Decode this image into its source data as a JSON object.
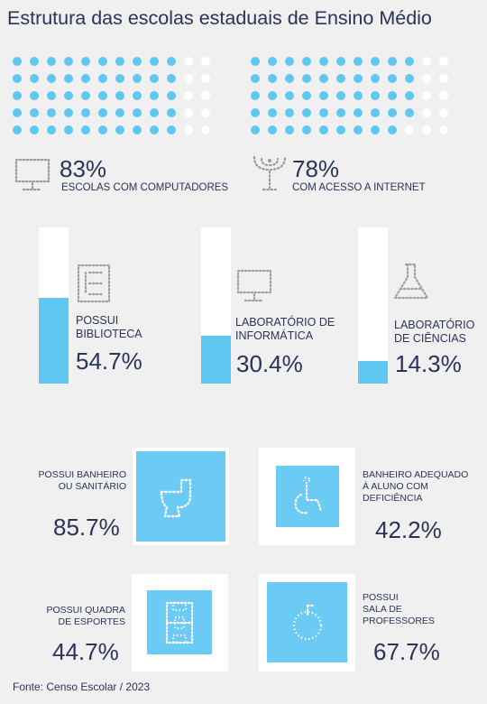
{
  "title": "Estrutura das escolas estaduais de Ensino Médio",
  "source": "Fonte: Censo Escolar / 2023",
  "colors": {
    "accent": "#5fc8f2",
    "text": "#2a3358",
    "background": "#f0f0f0"
  },
  "chart_data": [
    {
      "type": "waffle",
      "indicators": [
        {
          "value_label": "83%",
          "label": "ESCOLAS COM COMPUTADORES",
          "value": 83,
          "icon": "computer-icon"
        },
        {
          "value_label": "78%",
          "label": "COM ACESSO A INTERNET",
          "value": 78,
          "icon": "antenna-icon"
        }
      ]
    },
    {
      "type": "bar",
      "bars": [
        {
          "label_line1": "POSSUI",
          "label_line2": "BIBLIOTECA",
          "value_label": "54.7%",
          "value": 54.7,
          "icon": "library-icon"
        },
        {
          "label_line1": "LABORATÓRIO DE",
          "label_line2": "INFORMÁTICA",
          "value_label": "30.4%",
          "value": 30.4,
          "icon": "computer-icon"
        },
        {
          "label_line1": "LABORATÓRIO",
          "label_line2": "DE CIÊNCIAS",
          "value_label": "14.3%",
          "value": 14.3,
          "icon": "flask-icon"
        }
      ]
    },
    {
      "type": "tiles",
      "items": [
        {
          "lines": [
            "POSSUI BANHEIRO",
            "OU SANITÁRIO"
          ],
          "value_label": "85.7%",
          "value": 85.7,
          "icon": "toilet-icon"
        },
        {
          "lines": [
            "BANHEIRO ADEQUADO",
            "À ALUNO COM",
            "DEFICIÊNCIA"
          ],
          "value_label": "42.2%",
          "value": 42.2,
          "icon": "wheelchair-icon"
        },
        {
          "lines": [
            "POSSUI QUADRA",
            "DE ESPORTES"
          ],
          "value_label": "44.7%",
          "value": 44.7,
          "icon": "court-icon"
        },
        {
          "lines": [
            "POSSUI",
            "SALA DE",
            "PROFESSORES"
          ],
          "value_label": "67.7%",
          "value": 67.7,
          "icon": "coffee-cup-icon"
        }
      ]
    }
  ]
}
